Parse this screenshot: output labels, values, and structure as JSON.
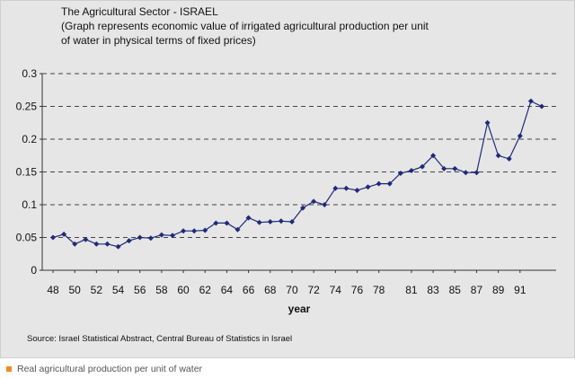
{
  "title_lines": [
    "The Agricultural Sector - ISRAEL",
    "(Graph represents economic value of irrigated agricultural production per unit",
    "of water in physical terms of fixed prices)"
  ],
  "source": "Source: Israel Statistical Abstract, Central Bureau of Statistics in Israel",
  "legend": {
    "label": "Real agricultural production per unit of water",
    "color": "#f28a1f"
  },
  "chart_data": {
    "type": "line",
    "xlabel": "year",
    "ylabel": "",
    "ylim": [
      0,
      0.3
    ],
    "yticks": [
      "0",
      "0.05",
      "0.1",
      "0.15",
      "0.2",
      "0.25",
      "0.3"
    ],
    "xticks": [
      "48",
      "50",
      "52",
      "54",
      "56",
      "58",
      "60",
      "62",
      "64",
      "66",
      "68",
      "70",
      "72",
      "74",
      "76",
      "78",
      "81",
      "83",
      "85",
      "87",
      "89",
      "91"
    ],
    "xtick_index": [
      0,
      2,
      4,
      6,
      8,
      10,
      12,
      14,
      16,
      18,
      20,
      22,
      24,
      26,
      28,
      30,
      33,
      35,
      37,
      39,
      41,
      43
    ],
    "grid": "horizontal dashed",
    "series_color": "#1f2a7a",
    "series": [
      {
        "name": "Real agricultural production per unit of water",
        "values": [
          0.05,
          0.055,
          0.04,
          0.047,
          0.04,
          0.04,
          0.036,
          0.045,
          0.05,
          0.049,
          0.054,
          0.053,
          0.06,
          0.06,
          0.061,
          0.072,
          0.072,
          0.062,
          0.08,
          0.073,
          0.074,
          0.075,
          0.074,
          0.095,
          0.105,
          0.1,
          0.125,
          0.125,
          0.122,
          0.127,
          0.132,
          0.132,
          0.148,
          0.152,
          0.158,
          0.175,
          0.155,
          0.155,
          0.149,
          0.149,
          0.225,
          0.175,
          0.17,
          0.205,
          0.258,
          0.25
        ]
      }
    ]
  }
}
